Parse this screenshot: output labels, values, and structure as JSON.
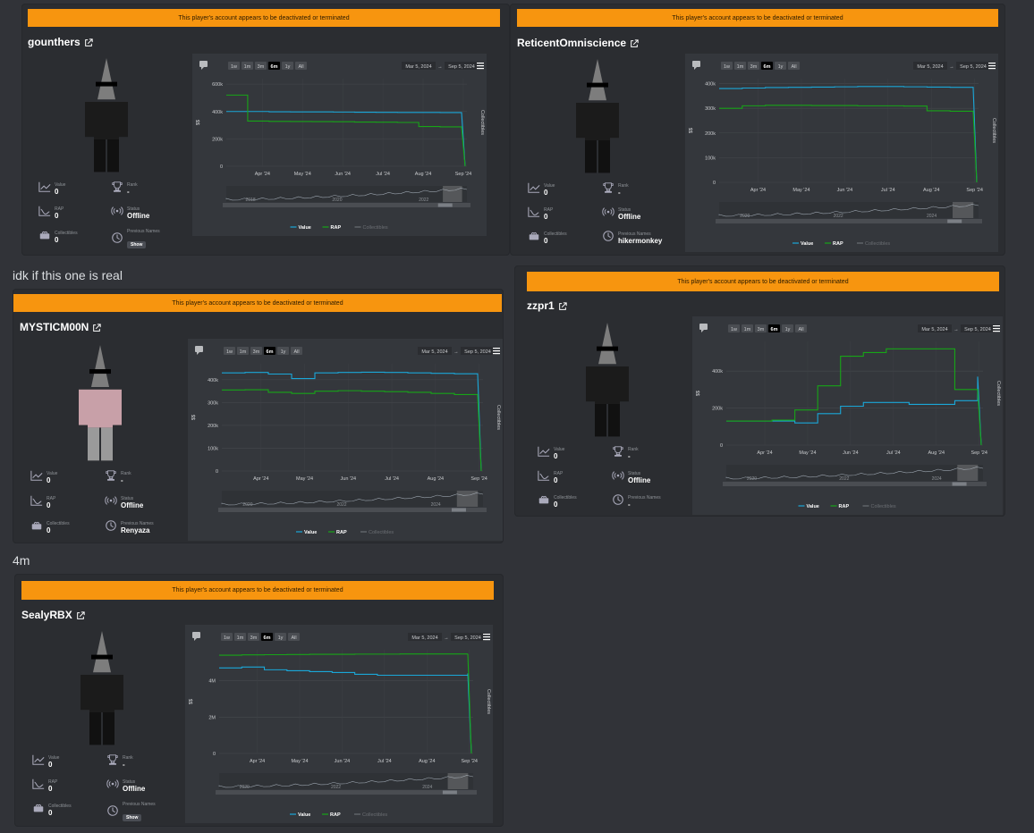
{
  "messages": {
    "note1": "idk if this one is real",
    "note2": "4m"
  },
  "common": {
    "banner": "This player's account appears to be deactivated or terminated",
    "ranges": [
      "1w",
      "1m",
      "3m",
      "6m",
      "1y",
      "All"
    ],
    "active_range": "6m",
    "date_from": "Mar 5, 2024",
    "date_arrow": "→",
    "date_to": "Sep 5, 2024",
    "ylabel": "$$",
    "y2label": "Collectibles",
    "xticks": [
      "Apr '24",
      "May '24",
      "Jun '24",
      "Jul '24",
      "Aug '24",
      "Sep '24"
    ],
    "legend": [
      "Value",
      "RAP",
      "Collectibles"
    ],
    "labels": {
      "value": "Value",
      "rank": "Rank",
      "rap": "RAP",
      "status": "Status",
      "collectibles": "Collectibles",
      "previous_names": "Previous Names"
    },
    "colors": {
      "value": "#1aa7d8",
      "rap": "#17a517",
      "banner": "#f7950f"
    }
  },
  "players": [
    {
      "name": "gounthers",
      "stats": {
        "value": "0",
        "rank": "-",
        "rap": "0",
        "status": "Offline",
        "collectibles": "0",
        "previous_names": "Show"
      },
      "chart_data": {
        "type": "line",
        "yticks": [
          "600k",
          "400k",
          "200k",
          "0"
        ],
        "nav_labels": [
          "2018",
          "2020",
          "2022"
        ],
        "series": [
          {
            "name": "Value",
            "values": [
              400000,
              400000,
              398000,
              397000,
              397000,
              396000,
              395000,
              394000,
              393000,
              393000,
              392000,
              392000,
              0
            ]
          },
          {
            "name": "RAP",
            "values": [
              520000,
              330000,
              328000,
              327000,
              326000,
              325000,
              323000,
              322000,
              320000,
              290000,
              288000,
              286000,
              0
            ]
          }
        ]
      }
    },
    {
      "name": "ReticentOmniscience",
      "stats": {
        "value": "0",
        "rank": "-",
        "rap": "0",
        "status": "Offline",
        "collectibles": "0",
        "previous_names": "hikermonkey"
      },
      "chart_data": {
        "type": "line",
        "yticks": [
          "400k",
          "300k",
          "200k",
          "100k",
          "0"
        ],
        "nav_labels": [
          "2020",
          "2022",
          "2024"
        ],
        "series": [
          {
            "name": "Value",
            "values": [
              380000,
              382000,
              384000,
              385000,
              386000,
              387000,
              388000,
              388000,
              387000,
              386000,
              385000,
              384000,
              0
            ]
          },
          {
            "name": "RAP",
            "values": [
              300000,
              310000,
              312000,
              312000,
              311000,
              311000,
              310000,
              310000,
              309000,
              290000,
              288000,
              287000,
              0
            ]
          }
        ]
      }
    },
    {
      "name": "MYSTICM00N",
      "stats": {
        "value": "0",
        "rank": "-",
        "rap": "0",
        "status": "Offline",
        "collectibles": "0",
        "previous_names": "Renyaza"
      },
      "chart_data": {
        "type": "line",
        "yticks": [
          "400k",
          "300k",
          "200k",
          "100k",
          "0"
        ],
        "nav_labels": [
          "2020",
          "2022",
          "2024"
        ],
        "series": [
          {
            "name": "Value",
            "values": [
              430000,
              432000,
              425000,
              405000,
              430000,
              432000,
              433000,
              432000,
              430000,
              428000,
              426000,
              425000,
              0
            ]
          },
          {
            "name": "RAP",
            "values": [
              355000,
              356000,
              345000,
              340000,
              350000,
              352000,
              350000,
              348000,
              345000,
              340000,
              335000,
              330000,
              0
            ]
          }
        ]
      }
    },
    {
      "name": "zzpr1",
      "stats": {
        "value": "0",
        "rank": "-",
        "rap": "0",
        "status": "Offline",
        "collectibles": "0",
        "previous_names": "-"
      },
      "chart_data": {
        "type": "line",
        "yticks": [
          "400k",
          "200k",
          "0"
        ],
        "nav_labels": [
          "2020",
          "2022",
          "2024"
        ],
        "series": [
          {
            "name": "Value",
            "values": [
              130000,
              130000,
              130000,
              120000,
              170000,
              210000,
              230000,
              230000,
              220000,
              220000,
              240000,
              370000,
              0
            ]
          },
          {
            "name": "RAP",
            "values": [
              130000,
              130000,
              135000,
              190000,
              320000,
              480000,
              500000,
              520000,
              520000,
              520000,
              300000,
              290000,
              0
            ]
          }
        ]
      }
    },
    {
      "name": "SealyRBX",
      "stats": {
        "value": "0",
        "rank": "-",
        "rap": "0",
        "status": "Offline",
        "collectibles": "0",
        "previous_names": "Show"
      },
      "chart_data": {
        "type": "line",
        "yticks": [
          "4M",
          "2M",
          "0"
        ],
        "nav_labels": [
          "2020",
          "2022",
          "2024"
        ],
        "series": [
          {
            "name": "Value",
            "values": [
              4700000,
              4750000,
              4600000,
              4550000,
              4500000,
              4450000,
              4350000,
              4300000,
              4300000,
              4300000,
              4300000,
              4400000,
              0
            ]
          },
          {
            "name": "RAP",
            "values": [
              5400000,
              5420000,
              5430000,
              5440000,
              5450000,
              5450000,
              5460000,
              5460000,
              5470000,
              5470000,
              5470000,
              5480000,
              0
            ]
          }
        ]
      }
    }
  ]
}
